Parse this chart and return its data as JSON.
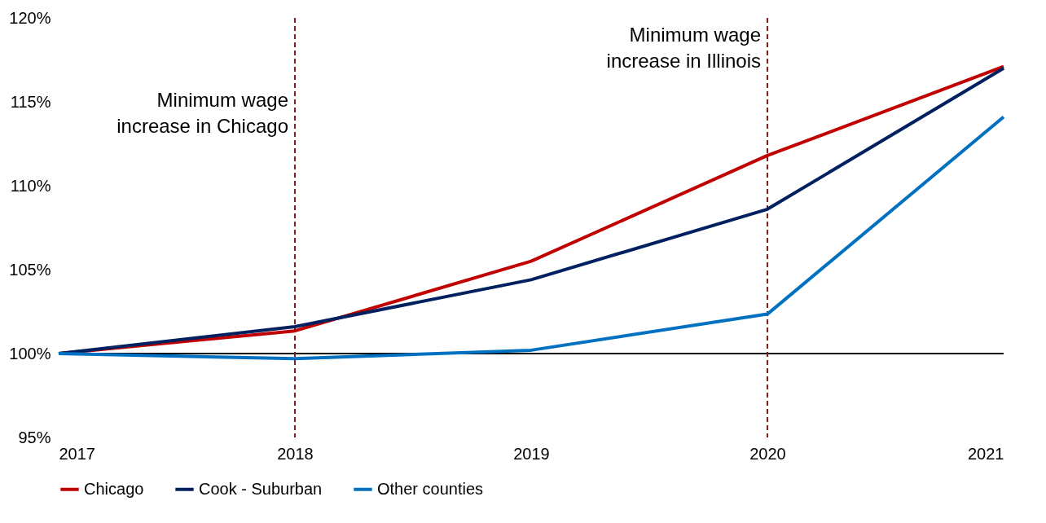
{
  "chart_data": {
    "type": "line",
    "x": [
      2017,
      2018,
      2019,
      2020,
      2021
    ],
    "series": [
      {
        "name": "Chicago",
        "color": "#c00000",
        "values": [
          100,
          101.35,
          105.5,
          111.8,
          117.1
        ]
      },
      {
        "name": "Cook - Suburban",
        "color": "#002060",
        "values": [
          100,
          101.6,
          104.4,
          108.6,
          117.0
        ]
      },
      {
        "name": "Other counties",
        "color": "#0070c0",
        "values": [
          100,
          99.7,
          100.2,
          102.35,
          114.1
        ]
      }
    ],
    "xlim": [
      2017,
      2021
    ],
    "xticks": [
      2017,
      2018,
      2019,
      2020,
      2021
    ],
    "ylim": [
      95,
      120
    ],
    "yticks": [
      {
        "value": 95,
        "label": "95%"
      },
      {
        "value": 100,
        "label": "100%"
      },
      {
        "value": 105,
        "label": "105%"
      },
      {
        "value": 110,
        "label": "110%"
      },
      {
        "value": 115,
        "label": "115%"
      },
      {
        "value": 120,
        "label": "120%"
      }
    ],
    "ref_lines": [
      {
        "axis": "y",
        "value": 100,
        "color": "#000000",
        "line_style": "solid"
      },
      {
        "axis": "x",
        "value": 2018,
        "label": "Minimum wage increase in Chicago",
        "color": "#7f1d1d",
        "line_style": "dashed"
      },
      {
        "axis": "x",
        "value": 2020,
        "label": "Minimum wage increase in Illinois",
        "color": "#7f1d1d",
        "line_style": "dashed"
      }
    ],
    "legend": "bottom"
  }
}
